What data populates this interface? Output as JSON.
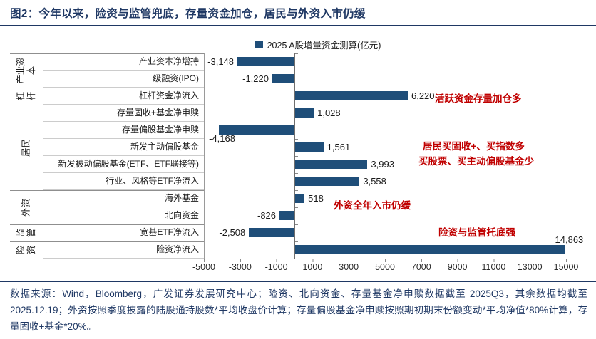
{
  "title": "图2：今年以来，险资与监管兜底，存量资金加仓，居民与外资入市仍缓",
  "source_note": "数据来源：Wind，Bloomberg，广发证券发展研究中心；险资、北向资金、存量基金净申赎数据截至 2025Q3，其余数据均截至2025.12.19；外资按照季度披露的陆股通持股数*平均收盘价计算；存量偏股基金净申赎按照期初期末份额变动*平均净值*80%计算，存量固收+基金*20%。",
  "colors": {
    "bar": "#1F4E79",
    "title_text": "#1F3864",
    "annotation_red": "#C00000"
  },
  "chart_data": {
    "type": "bar",
    "orientation": "horizontal",
    "title": "图2：今年以来，险资与监管兜底，存量资金加仓，居民与外资入市仍缓",
    "legend": "2025 A股增量资金测算(亿元)",
    "legend_position": "top-center",
    "grid": false,
    "x_range": [
      -5000,
      15000
    ],
    "x_tick_step": 2000,
    "x_ticks": [
      "-5000",
      "-3000",
      "-1000",
      "1000",
      "3000",
      "5000",
      "7000",
      "9000",
      "11000",
      "13000",
      "15000"
    ],
    "groups": [
      {
        "label": "产业资本",
        "rows": [
          0,
          1
        ]
      },
      {
        "label": "杠杆",
        "rows": [
          2,
          2
        ]
      },
      {
        "label": "居民",
        "rows": [
          3,
          7
        ]
      },
      {
        "label": "外资",
        "rows": [
          8,
          9
        ]
      },
      {
        "label": "监管",
        "rows": [
          10,
          10
        ]
      },
      {
        "label": "险资",
        "rows": [
          11,
          11
        ]
      }
    ],
    "items": [
      {
        "label": "产业资本净增持",
        "value": -3148,
        "value_label": "-3,148"
      },
      {
        "label": "一级融资(IPO)",
        "value": -1220,
        "value_label": "-1,220"
      },
      {
        "label": "杠杆资金净流入",
        "value": 6220,
        "value_label": "6,220"
      },
      {
        "label": "存量固收+基金净申赎",
        "value": 1028,
        "value_label": "1,028"
      },
      {
        "label": "存量偏股基金净申赎",
        "value": -4168,
        "value_label": "-4,168",
        "label_pos": "below-left"
      },
      {
        "label": "新发主动偏股基金",
        "value": 1561,
        "value_label": "1,561"
      },
      {
        "label": "新发被动偏股基金(ETF、ETF联接等)",
        "value": 3993,
        "value_label": "3,993"
      },
      {
        "label": "行业、风格等ETF净流入",
        "value": 3558,
        "value_label": "3,558"
      },
      {
        "label": "海外基金",
        "value": 518,
        "value_label": "518"
      },
      {
        "label": "北向资金",
        "value": -826,
        "value_label": "-826"
      },
      {
        "label": "宽基ETF净流入",
        "value": -2508,
        "value_label": "-2,508"
      },
      {
        "label": "险资净流入",
        "value": 14863,
        "value_label": "14,863",
        "label_pos": "above-right"
      }
    ],
    "annotations": [
      {
        "text": "活跃资金存量加仓多"
      },
      {
        "text": "居民买固收+、买指数多"
      },
      {
        "text": "买股票、买主动偏股基金少"
      },
      {
        "text": "外资全年入市仍缓"
      },
      {
        "text": "险资与监管托底强"
      }
    ]
  }
}
